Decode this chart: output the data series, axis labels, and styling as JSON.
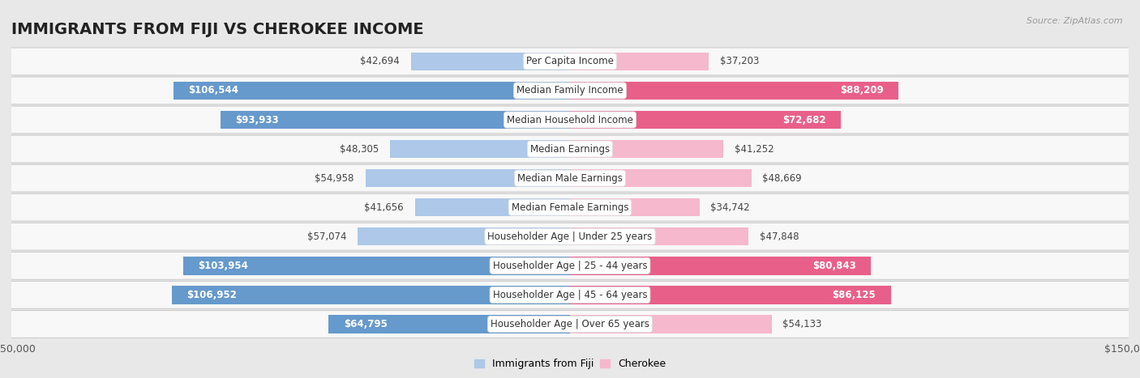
{
  "title": "IMMIGRANTS FROM FIJI VS CHEROKEE INCOME",
  "source": "Source: ZipAtlas.com",
  "categories": [
    "Per Capita Income",
    "Median Family Income",
    "Median Household Income",
    "Median Earnings",
    "Median Male Earnings",
    "Median Female Earnings",
    "Householder Age | Under 25 years",
    "Householder Age | 25 - 44 years",
    "Householder Age | 45 - 64 years",
    "Householder Age | Over 65 years"
  ],
  "fiji_values": [
    42694,
    106544,
    93933,
    48305,
    54958,
    41656,
    57074,
    103954,
    106952,
    64795
  ],
  "cherokee_values": [
    37203,
    88209,
    72682,
    41252,
    48669,
    34742,
    47848,
    80843,
    86125,
    54133
  ],
  "fiji_color_light": "#adc8e8",
  "fiji_color_dark": "#6699cc",
  "cherokee_color_light": "#f5b8cc",
  "cherokee_color_dark": "#e8608a",
  "fiji_threshold": 60000,
  "cherokee_threshold": 60000,
  "bar_height": 0.62,
  "xlim": 150000,
  "background_color": "#e8e8e8",
  "row_bg_color": "#f8f8f8",
  "title_fontsize": 14,
  "label_fontsize": 8.5,
  "tick_fontsize": 9,
  "value_fontsize": 8.5
}
